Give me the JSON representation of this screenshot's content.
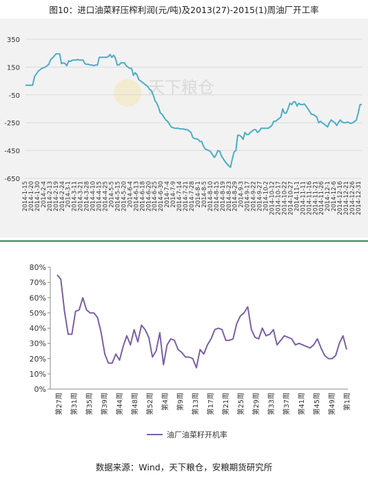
{
  "figure_title": "图10：进口油菜籽压榨利润(元/吨)及2013(27)-2015(1)周油厂开工率",
  "source_note": "数据来源：Wind，天下粮仓，安粮期货研究所",
  "watermark_text": "天下粮仓",
  "colors": {
    "profit_line": "#4bacc6",
    "rate_line": "#7b5ea7",
    "separator": "#2e8b57",
    "top_bg": "#f2f2f2",
    "grid": "#d9d9d9"
  },
  "chart_data": [
    {
      "type": "line",
      "title": "",
      "ylim": [
        -650,
        350
      ],
      "yticks": [
        "350",
        "150",
        "-50",
        "-250",
        "-450",
        "-650"
      ],
      "grid": true,
      "xtick_labels": [
        "2014-1-15",
        "2014-1-20",
        "2014-1-30",
        "2014-2-4",
        "2014-2-13",
        "2014-2-19",
        "2014-2-24",
        "2014-3-1",
        "2014-3-11",
        "2014-3-21",
        "2014-3-28",
        "2014-4-10",
        "2014-4-15",
        "2014-4-25",
        "2014-5-5",
        "2014-5-15",
        "2014-5-20",
        "2014-6-4",
        "2014-6-13",
        "2014-6-18",
        "2014-6-20",
        "2014-6-25",
        "2014-6-30",
        "2014-7-4",
        "2014-7-9",
        "2014-7-14",
        "2014-7-21",
        "2014-7-28",
        "2014-8-1",
        "2014-8-5",
        "2014-8-10",
        "2014-8-15",
        "2014-8-19",
        "2014-8-23",
        "2014-8-29",
        "2014-9-3",
        "2014-9-17",
        "2014-9-22",
        "2014-9-27",
        "2014-10-2",
        "2014-10-12",
        "2014-10-17",
        "2014-10-22",
        "2014-10-27",
        "2014-11-1",
        "2014-11-11",
        "2014-11-16",
        "2014-11-21",
        "2014-11-26",
        "2014-12-1",
        "2014-12-6",
        "2014-12-16",
        "2014-12-21",
        "2014-12-26",
        "2014-12-31"
      ],
      "series": [
        {
          "values": [
            20,
            20,
            20,
            20,
            20,
            80,
            100,
            120,
            130,
            140,
            145,
            150,
            160,
            170,
            205,
            215,
            230,
            245,
            245,
            245,
            175,
            180,
            175,
            160,
            195,
            190,
            200,
            200,
            200,
            205,
            200,
            200,
            200,
            175,
            170,
            170,
            165,
            165,
            160,
            165,
            165,
            220,
            220,
            220,
            220,
            220,
            225,
            240,
            220,
            235,
            215,
            165,
            165,
            180,
            180,
            180,
            160,
            150,
            140,
            140,
            90,
            110,
            95,
            60,
            50,
            40,
            30,
            20,
            10,
            -10,
            -20,
            -50,
            -90,
            -110,
            -140,
            -180,
            -190,
            -210,
            -230,
            -240,
            -260,
            -280,
            -285,
            -290,
            -290,
            -290,
            -295,
            -295,
            -295,
            -300,
            -300,
            -310,
            -320,
            -355,
            -365,
            -365,
            -370,
            -385,
            -385,
            -420,
            -440,
            -445,
            -450,
            -460,
            -480,
            -500,
            -480,
            -450,
            -455,
            -490,
            -510,
            -530,
            -545,
            -560,
            -570,
            -510,
            -460,
            -450,
            -340,
            -340,
            -350,
            -370,
            -320,
            -335,
            -335,
            -320,
            -310,
            -300,
            -300,
            -320,
            -310,
            -290,
            -290,
            -290,
            -290,
            -290,
            -280,
            -270,
            -240,
            -240,
            -230,
            -220,
            -210,
            -150,
            -180,
            -180,
            -150,
            -110,
            -120,
            -100,
            -100,
            -130,
            -110,
            -120,
            -120,
            -115,
            -130,
            -150,
            -170,
            -190,
            -190,
            -200,
            -210,
            -250,
            -240,
            -250,
            -260,
            -270,
            -280,
            -250,
            -230,
            -240,
            -250,
            -270,
            -250,
            -230,
            -245,
            -250,
            -250,
            -245,
            -250,
            -255,
            -250,
            -240,
            -230,
            -180,
            -120,
            -120
          ]
        }
      ]
    },
    {
      "type": "line",
      "title": "",
      "ylim": [
        0,
        80
      ],
      "yticks": [
        "80%",
        "70%",
        "60%",
        "50%",
        "40%",
        "30%",
        "20%",
        "10%",
        "0%"
      ],
      "grid": false,
      "legend_position": "bottom",
      "xtick_labels": [
        "第27周",
        "第31周",
        "第35周",
        "第39周",
        "第44周",
        "第48周",
        "第52周",
        "第4周",
        "第9周",
        "第13周",
        "第17周",
        "第21周",
        "第25周",
        "第29周",
        "第33周",
        "第37周",
        "第41周",
        "第45周",
        "第49周",
        "第1周"
      ],
      "series": [
        {
          "name": "油厂油菜籽开机率",
          "values": [
            75,
            72,
            51,
            36,
            36,
            51,
            52,
            60,
            52,
            50,
            50,
            47,
            37,
            23,
            17,
            17,
            23,
            19,
            28,
            35,
            29,
            39,
            31,
            42,
            39,
            34,
            21,
            25,
            37,
            16,
            29,
            33,
            32,
            26,
            24,
            21,
            21,
            20,
            14,
            26,
            23,
            29,
            33,
            39,
            40,
            39,
            32,
            32,
            33,
            43,
            48,
            50,
            54,
            39,
            34,
            33,
            40,
            35,
            36,
            39,
            29,
            32,
            35,
            34,
            33,
            29,
            30,
            29,
            28,
            27,
            29,
            33,
            27,
            22,
            20,
            20,
            22,
            30,
            35,
            26
          ]
        }
      ]
    }
  ]
}
